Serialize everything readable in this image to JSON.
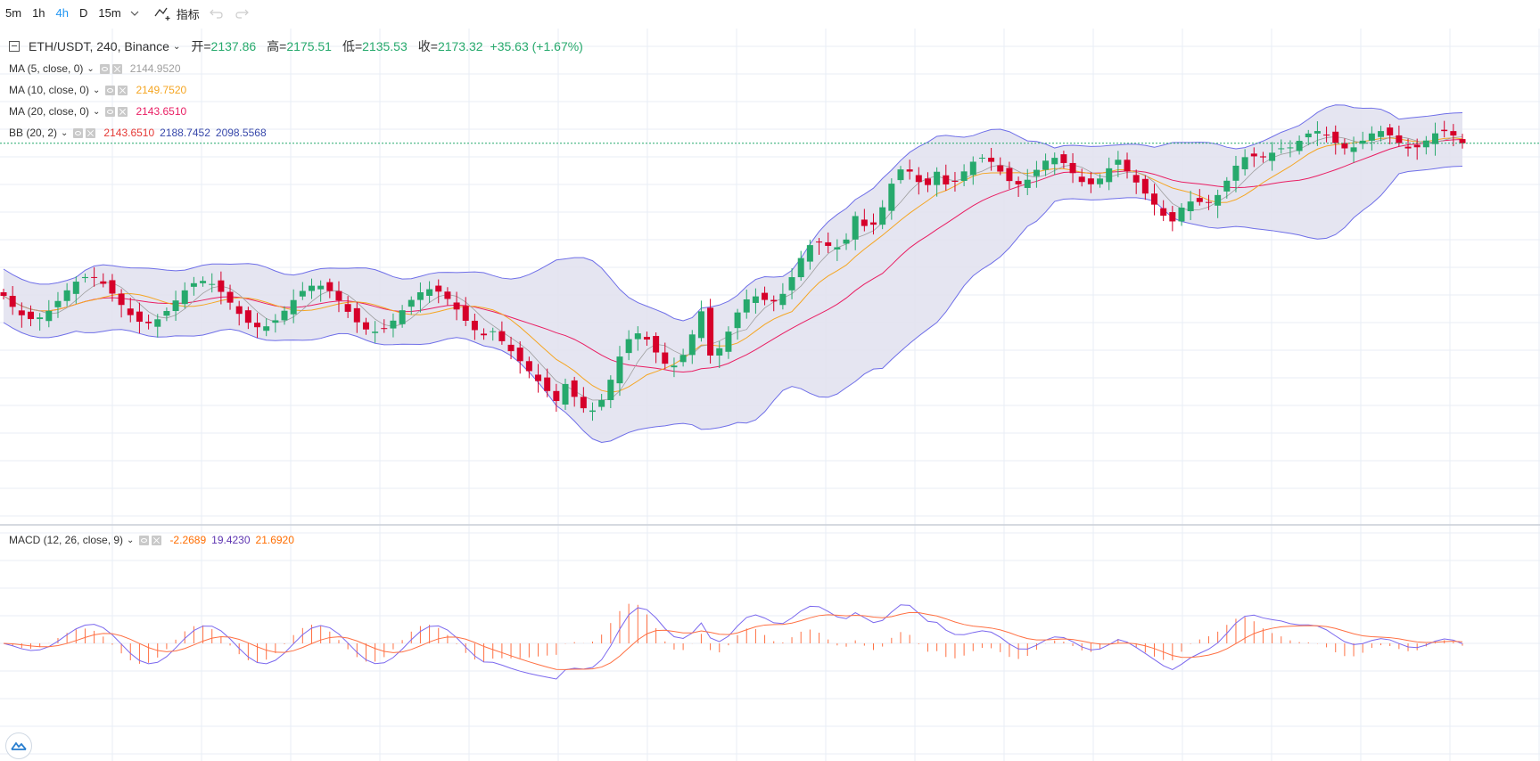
{
  "toolbar": {
    "timeframes": [
      "5m",
      "1h",
      "4h",
      "D",
      "15m"
    ],
    "active_timeframe": "4h",
    "indicators_label": "指标"
  },
  "main_legend": {
    "symbol": "ETH/USDT, 240, Binance",
    "open_label": "开=",
    "open": "2137.86",
    "high_label": "高=",
    "high": "2175.51",
    "low_label": "低=",
    "low": "2135.53",
    "close_label": "收=",
    "close": "2173.32",
    "change": "+35.63 (+1.67%)"
  },
  "indicators": [
    {
      "name": "MA (5, close, 0)",
      "values": [
        "2144.9520"
      ],
      "colors": [
        "#9e9e9e"
      ]
    },
    {
      "name": "MA (10, close, 0)",
      "values": [
        "2149.7520"
      ],
      "colors": [
        "#f5a623"
      ]
    },
    {
      "name": "MA (20, close, 0)",
      "values": [
        "2143.6510"
      ],
      "colors": [
        "#e91e63"
      ]
    },
    {
      "name": "BB (20, 2)",
      "values": [
        "2143.6510",
        "2188.7452",
        "2098.5568"
      ],
      "colors": [
        "#e53935",
        "#3949ab",
        "#3949ab"
      ]
    }
  ],
  "macd": {
    "name": "MACD (12, 26, close, 9)",
    "values": [
      "-2.2689",
      "19.4230",
      "21.6920"
    ],
    "colors": [
      "#ff6d00",
      "#5e35b1",
      "#ff6d00"
    ]
  },
  "colors": {
    "up": "#26a96c",
    "down": "#d6002a",
    "bb_band": "#6f6fe8",
    "bb_fill": "#e0e0ef",
    "ma5": "#9e9e9e",
    "ma10": "#f5a623",
    "ma20": "#e91e63",
    "macd_line": "#7b68ee",
    "signal_line": "#ff7043",
    "histogram": "#ff7043",
    "last_price_line": "#26a96c",
    "grid": "#e8eef5",
    "active_timeframe": "#2196f3"
  }
}
